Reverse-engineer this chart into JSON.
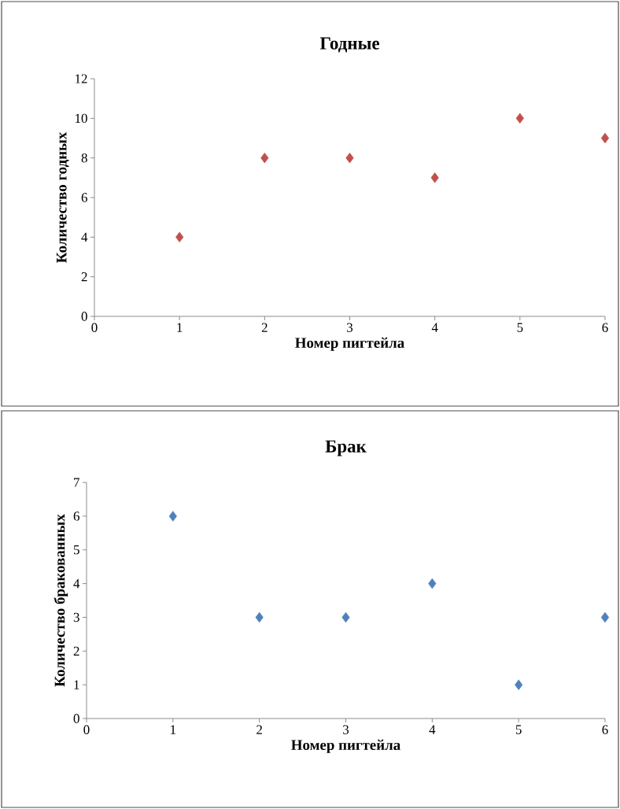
{
  "chart_data": [
    {
      "type": "scatter",
      "title": "Годные",
      "xlabel": "Номер пигтейла",
      "ylabel": "Количество годных",
      "x": [
        1,
        2,
        3,
        4,
        5,
        6
      ],
      "values": [
        4,
        8,
        8,
        7,
        10,
        9
      ],
      "color": "#c0504d",
      "marker": "diamond",
      "xlim": [
        0,
        6
      ],
      "ylim": [
        0,
        12
      ],
      "xticks": [
        0,
        1,
        2,
        3,
        4,
        5,
        6
      ],
      "yticks": [
        0,
        2,
        4,
        6,
        8,
        10,
        12
      ]
    },
    {
      "type": "scatter",
      "title": "Брак",
      "xlabel": "Номер пигтейла",
      "ylabel": "Количество бракованных",
      "x": [
        1,
        2,
        3,
        4,
        5,
        6
      ],
      "values": [
        6,
        3,
        3,
        4,
        1,
        3
      ],
      "color": "#4f81bd",
      "marker": "diamond",
      "xlim": [
        0,
        6
      ],
      "ylim": [
        0,
        7
      ],
      "xticks": [
        0,
        1,
        2,
        3,
        4,
        5,
        6
      ],
      "yticks": [
        0,
        1,
        2,
        3,
        4,
        5,
        6,
        7
      ]
    }
  ]
}
